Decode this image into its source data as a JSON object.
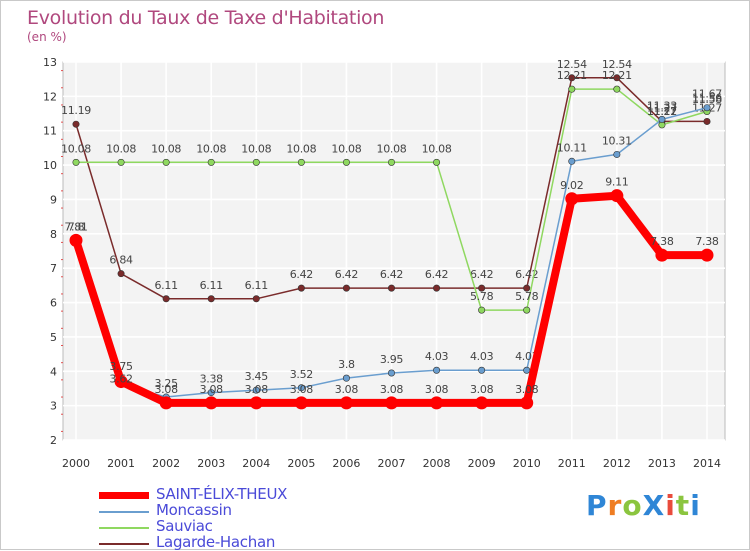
{
  "title": "Evolution du Taux de Taxe d'Habitation",
  "subtitle": "(en %)",
  "logo": {
    "text": "ProXiti",
    "colors": [
      "#2f86d6",
      "#ef7d22",
      "#8bc53f",
      "#2f86d6",
      "#e94b3c",
      "#8bc53f",
      "#2f86d6"
    ]
  },
  "chart_data": {
    "type": "line",
    "title": "Evolution du Taux de Taxe d'Habitation",
    "ylabel": "(en %)",
    "xlabel": "",
    "ylim": [
      2,
      13
    ],
    "yticks": [
      2,
      3,
      4,
      5,
      6,
      7,
      8,
      9,
      10,
      11,
      12,
      13
    ],
    "grid": true,
    "legend_position": "bottom-left",
    "categories": [
      "2000",
      "2001",
      "2002",
      "2003",
      "2004",
      "2005",
      "2006",
      "2007",
      "2008",
      "2009",
      "2010",
      "2011",
      "2012",
      "2013",
      "2014"
    ],
    "series": [
      {
        "name": "SAINT-ÉLIX-THEUX",
        "color": "#ff0000",
        "values": [
          7.81,
          3.7,
          3.08,
          3.08,
          3.08,
          3.08,
          3.08,
          3.08,
          3.08,
          3.08,
          3.08,
          9.02,
          9.11,
          7.38,
          7.38
        ],
        "labels": [
          "7.81",
          "",
          "3.08",
          "3.08",
          "3.08",
          "3.08",
          "3.08",
          "3.08",
          "3.08",
          "3.08",
          "3.08",
          "9.02",
          "9.11",
          "7.38",
          "7.38"
        ]
      },
      {
        "name": "Moncassin",
        "color": "#6a9ecf",
        "values": [
          7.8,
          3.62,
          3.25,
          3.38,
          3.45,
          3.52,
          3.8,
          3.95,
          4.03,
          4.03,
          4.03,
          10.11,
          10.31,
          11.33,
          11.67
        ],
        "labels": [
          "7.8",
          "",
          "3.25",
          "3.38",
          "3.45",
          "3.52",
          "3.8",
          "3.95",
          "4.03",
          "4.03",
          "4.03",
          "10.11",
          "10.31",
          "11.33",
          "11.67"
        ]
      },
      {
        "name": "Sauviac",
        "color": "#8fd860",
        "values": [
          10.08,
          10.08,
          10.08,
          10.08,
          10.08,
          10.08,
          10.08,
          10.08,
          10.08,
          5.78,
          5.78,
          12.21,
          12.21,
          11.17,
          11.56
        ],
        "labels": [
          "10.08",
          "10.08",
          "10.08",
          "10.08",
          "10.08",
          "10.08",
          "10.08",
          "10.08",
          "10.08",
          "5.78",
          "5.78",
          "12.21",
          "12.21",
          "11.17",
          "11.56"
        ]
      },
      {
        "name": "Lagarde-Hachan",
        "color": "#7a2b2b",
        "values": [
          11.19,
          6.84,
          6.11,
          6.11,
          6.11,
          6.42,
          6.42,
          6.42,
          6.42,
          6.42,
          6.42,
          12.54,
          12.54,
          11.27,
          11.27
        ],
        "labels": [
          "11.19",
          "6.84",
          "6.11",
          "6.11",
          "6.11",
          "6.42",
          "6.42",
          "6.42",
          "6.42",
          "6.42",
          "6.42",
          "12.54",
          "12.54",
          "11.27",
          "11.27"
        ]
      }
    ],
    "extra_labels": [
      "3.75",
      "3.62",
      "11.22",
      "11.58"
    ]
  }
}
